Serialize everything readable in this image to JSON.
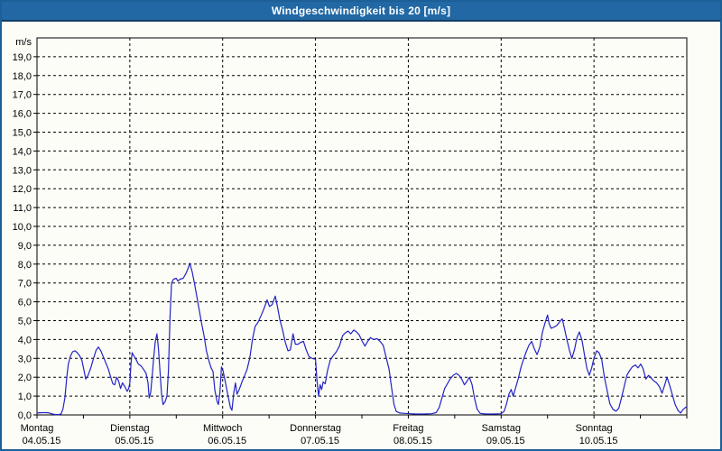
{
  "window": {
    "title": "Windgeschwindigkeit bis 20 [m/s]"
  },
  "colors": {
    "titlebar_bg": "#2168a4",
    "titlebar_text": "#ffffff",
    "window_border": "#1d5f97",
    "page_bg": "#fcfdf7",
    "plot_border": "#000000",
    "grid": "#000000",
    "tick_text": "#000000",
    "line": "#2323c6"
  },
  "chart_data": {
    "type": "line",
    "title": "Windgeschwindigkeit bis 20 [m/s]",
    "unit_label": "m/s",
    "grid": "dashed",
    "legend": "none",
    "y_axis": {
      "min": 0,
      "max": 20,
      "step": 1,
      "tick_labels": [
        "0,0",
        "1,0",
        "2,0",
        "3,0",
        "4,0",
        "5,0",
        "6,0",
        "7,0",
        "8,0",
        "9,0",
        "10,0",
        "11,0",
        "12,0",
        "13,0",
        "14,0",
        "15,0",
        "16,0",
        "17,0",
        "18,0",
        "19,0"
      ]
    },
    "x_axis": {
      "total_hours": 168,
      "day_width_hours": 24,
      "minor_tick_hours": 12,
      "days": [
        {
          "name": "Montag",
          "date": "04.05.15"
        },
        {
          "name": "Dienstag",
          "date": "05.05.15"
        },
        {
          "name": "Mittwoch",
          "date": "06.05.15"
        },
        {
          "name": "Donnerstag",
          "date": "07.05.15"
        },
        {
          "name": "Freitag",
          "date": "08.05.15"
        },
        {
          "name": "Samstag",
          "date": "09.05.15"
        },
        {
          "name": "Sonntag",
          "date": "10.05.15"
        }
      ]
    },
    "series": [
      {
        "name": "Windgeschwindigkeit [m/s]",
        "color": "#2323c6",
        "points": [
          [
            0,
            0.1
          ],
          [
            1.2,
            0.12
          ],
          [
            2.4,
            0.12
          ],
          [
            3.2,
            0.1
          ],
          [
            4,
            0.05
          ],
          [
            4.8,
            0.02
          ],
          [
            5.6,
            0.02
          ],
          [
            6.2,
            0.05
          ],
          [
            6.7,
            0.3
          ],
          [
            7.2,
            0.9
          ],
          [
            7.7,
            2.0
          ],
          [
            8.1,
            2.7
          ],
          [
            8.6,
            3.1
          ],
          [
            9.2,
            3.35
          ],
          [
            9.8,
            3.4
          ],
          [
            10.4,
            3.3
          ],
          [
            11,
            3.15
          ],
          [
            11.6,
            2.9
          ],
          [
            12.1,
            2.4
          ],
          [
            12.6,
            1.9
          ],
          [
            13.2,
            2.1
          ],
          [
            13.9,
            2.5
          ],
          [
            14.6,
            3.0
          ],
          [
            15.3,
            3.45
          ],
          [
            15.9,
            3.6
          ],
          [
            16.5,
            3.4
          ],
          [
            17.1,
            3.1
          ],
          [
            17.7,
            2.8
          ],
          [
            18.4,
            2.45
          ],
          [
            19,
            2.05
          ],
          [
            19.6,
            1.65
          ],
          [
            20.1,
            1.6
          ],
          [
            20.6,
            2.0
          ],
          [
            21.1,
            1.8
          ],
          [
            21.6,
            1.4
          ],
          [
            22.1,
            1.7
          ],
          [
            22.7,
            1.5
          ],
          [
            23.3,
            1.25
          ],
          [
            23.7,
            1.4
          ],
          [
            24,
            1.7
          ],
          [
            24.3,
            2.7
          ],
          [
            24.6,
            3.3
          ],
          [
            25,
            3.15
          ],
          [
            25.6,
            2.95
          ],
          [
            26.2,
            2.7
          ],
          [
            26.9,
            2.6
          ],
          [
            27.6,
            2.4
          ],
          [
            28.2,
            2.2
          ],
          [
            28.7,
            1.7
          ],
          [
            29,
            0.9
          ],
          [
            29.4,
            1.2
          ],
          [
            29.8,
            2.1
          ],
          [
            30.2,
            3.1
          ],
          [
            30.6,
            3.9
          ],
          [
            31,
            4.3
          ],
          [
            31.4,
            3.5
          ],
          [
            31.8,
            2.3
          ],
          [
            32.2,
            1.1
          ],
          [
            32.6,
            0.55
          ],
          [
            33.1,
            0.7
          ],
          [
            33.6,
            1.0
          ],
          [
            34,
            2.4
          ],
          [
            34.4,
            5.2
          ],
          [
            34.8,
            7.0
          ],
          [
            35.3,
            7.2
          ],
          [
            36,
            7.25
          ],
          [
            36.4,
            7.1
          ],
          [
            37,
            7.2
          ],
          [
            37.8,
            7.25
          ],
          [
            38.5,
            7.5
          ],
          [
            39.1,
            7.8
          ],
          [
            39.5,
            8.05
          ],
          [
            40.1,
            7.6
          ],
          [
            40.7,
            7.0
          ],
          [
            41.3,
            6.3
          ],
          [
            42,
            5.5
          ],
          [
            42.6,
            4.8
          ],
          [
            43.2,
            4.2
          ],
          [
            43.8,
            3.4
          ],
          [
            44.4,
            2.9
          ],
          [
            45,
            2.5
          ],
          [
            45.5,
            2.3
          ],
          [
            46,
            1.3
          ],
          [
            46.5,
            0.75
          ],
          [
            46.9,
            0.55
          ],
          [
            47.3,
            1.2
          ],
          [
            47.7,
            2.55
          ],
          [
            48.1,
            2.35
          ],
          [
            48.8,
            1.65
          ],
          [
            49.4,
            1.0
          ],
          [
            50,
            0.4
          ],
          [
            50.4,
            0.25
          ],
          [
            50.9,
            1.2
          ],
          [
            51.3,
            1.7
          ],
          [
            51.7,
            1.1
          ],
          [
            52.3,
            1.35
          ],
          [
            53,
            1.75
          ],
          [
            53.6,
            2.05
          ],
          [
            54.3,
            2.4
          ],
          [
            55,
            3.0
          ],
          [
            55.7,
            4.0
          ],
          [
            56.4,
            4.7
          ],
          [
            57.1,
            4.9
          ],
          [
            57.9,
            5.25
          ],
          [
            58.7,
            5.65
          ],
          [
            59.5,
            6.1
          ],
          [
            60.1,
            5.75
          ],
          [
            60.8,
            5.85
          ],
          [
            61.6,
            6.3
          ],
          [
            62.2,
            5.7
          ],
          [
            62.8,
            5.05
          ],
          [
            63.5,
            4.5
          ],
          [
            64.2,
            3.85
          ],
          [
            64.9,
            3.4
          ],
          [
            65.5,
            3.45
          ],
          [
            66.2,
            4.3
          ],
          [
            66.8,
            3.75
          ],
          [
            67.5,
            3.75
          ],
          [
            68.2,
            3.85
          ],
          [
            68.9,
            3.9
          ],
          [
            69.6,
            3.45
          ],
          [
            70.3,
            3.1
          ],
          [
            71.1,
            3.0
          ],
          [
            72,
            2.95
          ],
          [
            72.4,
            1.8
          ],
          [
            72.8,
            1.0
          ],
          [
            73.2,
            1.6
          ],
          [
            73.6,
            1.35
          ],
          [
            74,
            1.75
          ],
          [
            74.5,
            1.65
          ],
          [
            75.1,
            2.35
          ],
          [
            75.8,
            2.9
          ],
          [
            76.6,
            3.15
          ],
          [
            77.4,
            3.35
          ],
          [
            78.2,
            3.65
          ],
          [
            79,
            4.2
          ],
          [
            79.7,
            4.35
          ],
          [
            80.4,
            4.45
          ],
          [
            81.1,
            4.3
          ],
          [
            81.9,
            4.5
          ],
          [
            82.6,
            4.4
          ],
          [
            83.3,
            4.25
          ],
          [
            84.1,
            3.9
          ],
          [
            84.8,
            3.65
          ],
          [
            85.5,
            3.9
          ],
          [
            86.2,
            4.1
          ],
          [
            87,
            4.0
          ],
          [
            87.9,
            4.05
          ],
          [
            88.7,
            3.9
          ],
          [
            89.5,
            3.7
          ],
          [
            90.2,
            3.1
          ],
          [
            91,
            2.45
          ],
          [
            91.7,
            1.4
          ],
          [
            92.3,
            0.55
          ],
          [
            92.9,
            0.18
          ],
          [
            93.8,
            0.1
          ],
          [
            95,
            0.08
          ],
          [
            96.5,
            0.06
          ],
          [
            98,
            0.05
          ],
          [
            100,
            0.05
          ],
          [
            102,
            0.06
          ],
          [
            103.2,
            0.12
          ],
          [
            104,
            0.4
          ],
          [
            104.7,
            0.9
          ],
          [
            105.4,
            1.4
          ],
          [
            106.1,
            1.65
          ],
          [
            106.8,
            1.9
          ],
          [
            107.6,
            2.1
          ],
          [
            108.4,
            2.2
          ],
          [
            109.1,
            2.1
          ],
          [
            109.8,
            1.9
          ],
          [
            110.5,
            1.6
          ],
          [
            111.2,
            1.8
          ],
          [
            111.8,
            2.0
          ],
          [
            112.5,
            1.6
          ],
          [
            113.1,
            0.9
          ],
          [
            113.8,
            0.3
          ],
          [
            114.6,
            0.08
          ],
          [
            116,
            0.05
          ],
          [
            118,
            0.05
          ],
          [
            120,
            0.06
          ],
          [
            120.8,
            0.2
          ],
          [
            121.4,
            0.6
          ],
          [
            122,
            1.1
          ],
          [
            122.6,
            1.35
          ],
          [
            123.1,
            1.0
          ],
          [
            123.7,
            1.4
          ],
          [
            124.4,
            1.9
          ],
          [
            125.1,
            2.5
          ],
          [
            125.8,
            2.95
          ],
          [
            126.5,
            3.35
          ],
          [
            127.2,
            3.7
          ],
          [
            127.9,
            3.9
          ],
          [
            128.6,
            3.5
          ],
          [
            129.3,
            3.2
          ],
          [
            130,
            3.6
          ],
          [
            130.7,
            4.4
          ],
          [
            131.4,
            4.9
          ],
          [
            132,
            5.3
          ],
          [
            132.4,
            4.85
          ],
          [
            132.9,
            4.6
          ],
          [
            133.6,
            4.65
          ],
          [
            134.4,
            4.75
          ],
          [
            135.2,
            4.95
          ],
          [
            135.8,
            5.1
          ],
          [
            136.4,
            4.55
          ],
          [
            137,
            4.0
          ],
          [
            137.7,
            3.4
          ],
          [
            138.3,
            3.0
          ],
          [
            139,
            3.5
          ],
          [
            139.6,
            4.1
          ],
          [
            140.2,
            4.4
          ],
          [
            140.9,
            3.95
          ],
          [
            141.6,
            3.1
          ],
          [
            142.2,
            2.45
          ],
          [
            142.8,
            2.1
          ],
          [
            143.4,
            2.5
          ],
          [
            144,
            3.0
          ],
          [
            144.7,
            3.4
          ],
          [
            145.3,
            3.3
          ],
          [
            146,
            2.95
          ],
          [
            146.7,
            2.0
          ],
          [
            147.4,
            1.3
          ],
          [
            148.1,
            0.6
          ],
          [
            148.9,
            0.3
          ],
          [
            149.7,
            0.2
          ],
          [
            150.4,
            0.35
          ],
          [
            151.1,
            0.9
          ],
          [
            151.8,
            1.5
          ],
          [
            152.5,
            2.1
          ],
          [
            153.2,
            2.35
          ],
          [
            153.9,
            2.55
          ],
          [
            154.7,
            2.65
          ],
          [
            155.4,
            2.5
          ],
          [
            156.1,
            2.7
          ],
          [
            156.7,
            2.45
          ],
          [
            157.4,
            1.9
          ],
          [
            158.1,
            2.1
          ],
          [
            158.8,
            1.95
          ],
          [
            159.5,
            1.8
          ],
          [
            160.2,
            1.7
          ],
          [
            160.9,
            1.5
          ],
          [
            161.6,
            1.15
          ],
          [
            162.3,
            1.6
          ],
          [
            162.9,
            2.0
          ],
          [
            163.6,
            1.55
          ],
          [
            164.3,
            1.05
          ],
          [
            165,
            0.55
          ],
          [
            165.7,
            0.25
          ],
          [
            166.4,
            0.1
          ],
          [
            167.1,
            0.3
          ],
          [
            168,
            0.45
          ]
        ]
      }
    ]
  }
}
